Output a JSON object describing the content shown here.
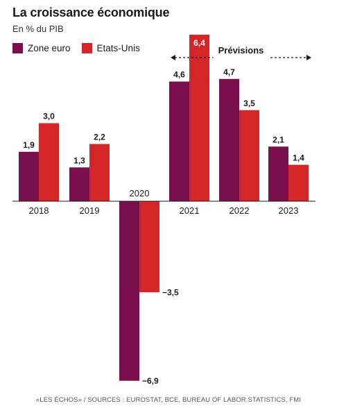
{
  "chart_data": {
    "type": "bar",
    "title": "La croissance économique",
    "subtitle": "En % du PIB",
    "categories": [
      "2018",
      "2019",
      "2020",
      "2021",
      "2022",
      "2023"
    ],
    "series": [
      {
        "name": "Zone euro",
        "color": "#7a0f4e",
        "values": [
          1.9,
          1.3,
          -6.9,
          4.6,
          4.7,
          2.1
        ],
        "labels": [
          "1,9",
          "1,3",
          "−6,9",
          "4,6",
          "4,7",
          "2,1"
        ]
      },
      {
        "name": "Etats-Unis",
        "color": "#d42626",
        "values": [
          3.0,
          2.2,
          -3.5,
          6.4,
          3.5,
          1.4
        ],
        "labels": [
          "3,0",
          "2,2",
          "−3,5",
          "6,4",
          "3,5",
          "1,4"
        ]
      }
    ],
    "annotation": {
      "label": "Prévisions",
      "from_category": "2021",
      "to_category": "2023"
    },
    "ylim": [
      -7.2,
      6.6
    ],
    "grid": false,
    "legend_position": "top-left"
  },
  "source": "«LES ÉCHOS» / SOURCES : EUROSTAT, BCE, BUREAU OF LABOR STATISTICS, FMI"
}
